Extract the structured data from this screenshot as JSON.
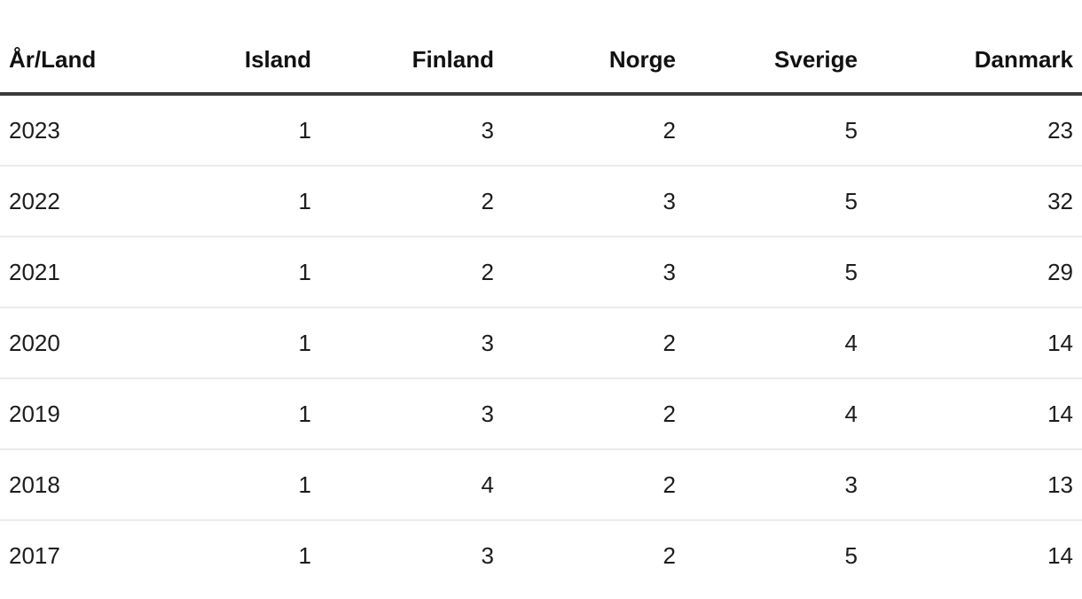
{
  "chart_data": {
    "type": "table",
    "title": "",
    "columns": [
      "År/Land",
      "Island",
      "Finland",
      "Norge",
      "Sverige",
      "Danmark"
    ],
    "rows": [
      [
        "2023",
        1,
        3,
        2,
        5,
        23
      ],
      [
        "2022",
        1,
        2,
        3,
        5,
        32
      ],
      [
        "2021",
        1,
        2,
        3,
        5,
        29
      ],
      [
        "2020",
        1,
        3,
        2,
        4,
        14
      ],
      [
        "2019",
        1,
        3,
        2,
        4,
        14
      ],
      [
        "2018",
        1,
        4,
        2,
        3,
        13
      ],
      [
        "2017",
        1,
        3,
        2,
        5,
        14
      ]
    ],
    "layout_hints": {
      "first_column_align": "left",
      "value_columns_align": "right",
      "header_rule_color": "#3a3a3a",
      "row_rule_color": "#ebebeb",
      "background": "#ffffff",
      "text_color": "#1c1c1c"
    }
  }
}
